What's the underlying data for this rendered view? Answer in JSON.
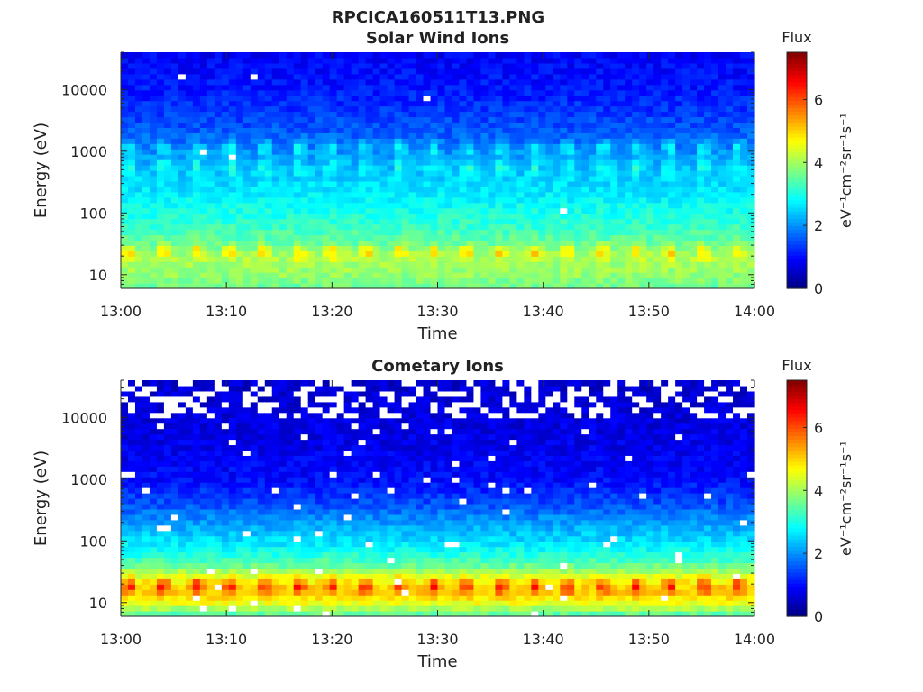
{
  "figure": {
    "title": "RPCICA160511T13.PNG"
  },
  "chart_data": [
    {
      "type": "heatmap",
      "title": "Solar Wind Ions",
      "xlabel": "Time",
      "ylabel": "Energy (eV)",
      "x_ticks": [
        "13:00",
        "13:10",
        "13:20",
        "13:30",
        "13:40",
        "13:50",
        "14:00"
      ],
      "xlim": [
        "13:00",
        "14:00"
      ],
      "y_scale": "log",
      "y_ticks": [
        "10",
        "100",
        "1000",
        "10000"
      ],
      "ylim": [
        6,
        40000
      ],
      "colorbar": {
        "label": "Flux",
        "unit": "eV⁻¹cm⁻²sr⁻¹s⁻¹",
        "ticks": [
          "0",
          "2",
          "4",
          "6"
        ],
        "range": [
          0,
          7.5
        ],
        "colormap": "jet"
      },
      "grid": false,
      "flux_profile": {
        "log_energy_eV": [
          0.8,
          1.0,
          1.3,
          1.5,
          1.8,
          2.0,
          2.3,
          2.7,
          3.0,
          3.3,
          3.7,
          4.0,
          4.6
        ],
        "flux": [
          3.6,
          3.9,
          4.1,
          3.6,
          3.2,
          3.0,
          2.7,
          2.4,
          2.0,
          1.6,
          1.3,
          1.1,
          0.9
        ]
      },
      "periodic_pulses": {
        "period_minutes": 3.2,
        "bands": [
          {
            "center_log_energy_eV": 1.38,
            "extra_flux": 1.1
          },
          {
            "center_log_energy_eV": 3.06,
            "extra_flux": 0.9
          },
          {
            "center_log_energy_eV": 2.75,
            "extra_flux": 0.7
          }
        ]
      },
      "empty_fraction": 0.002
    },
    {
      "type": "heatmap",
      "title": "Cometary Ions",
      "xlabel": "Time",
      "ylabel": "Energy (eV)",
      "x_ticks": [
        "13:00",
        "13:10",
        "13:20",
        "13:30",
        "13:40",
        "13:50",
        "14:00"
      ],
      "xlim": [
        "13:00",
        "14:00"
      ],
      "y_scale": "log",
      "y_ticks": [
        "10",
        "100",
        "1000",
        "10000"
      ],
      "ylim": [
        6,
        40000
      ],
      "colorbar": {
        "label": "Flux",
        "unit": "eV⁻¹cm⁻²sr⁻¹s⁻¹",
        "ticks": [
          "0",
          "2",
          "4",
          "6"
        ],
        "range": [
          0,
          7.5
        ],
        "colormap": "jet"
      },
      "grid": false,
      "flux_profile": {
        "log_energy_eV": [
          0.8,
          1.0,
          1.2,
          1.4,
          1.6,
          1.8,
          2.0,
          2.3,
          2.6,
          3.0,
          3.5,
          4.0,
          4.6
        ],
        "flux": [
          3.4,
          4.6,
          5.2,
          4.6,
          3.6,
          3.0,
          2.6,
          2.1,
          1.5,
          1.0,
          0.8,
          0.7,
          0.6
        ]
      },
      "periodic_pulses": {
        "period_minutes": 3.2,
        "bands": [
          {
            "center_log_energy_eV": 1.28,
            "extra_flux": 1.4
          }
        ]
      },
      "empty_fraction": 0.02,
      "empty_fraction_above_10000_eV": 0.3
    }
  ]
}
